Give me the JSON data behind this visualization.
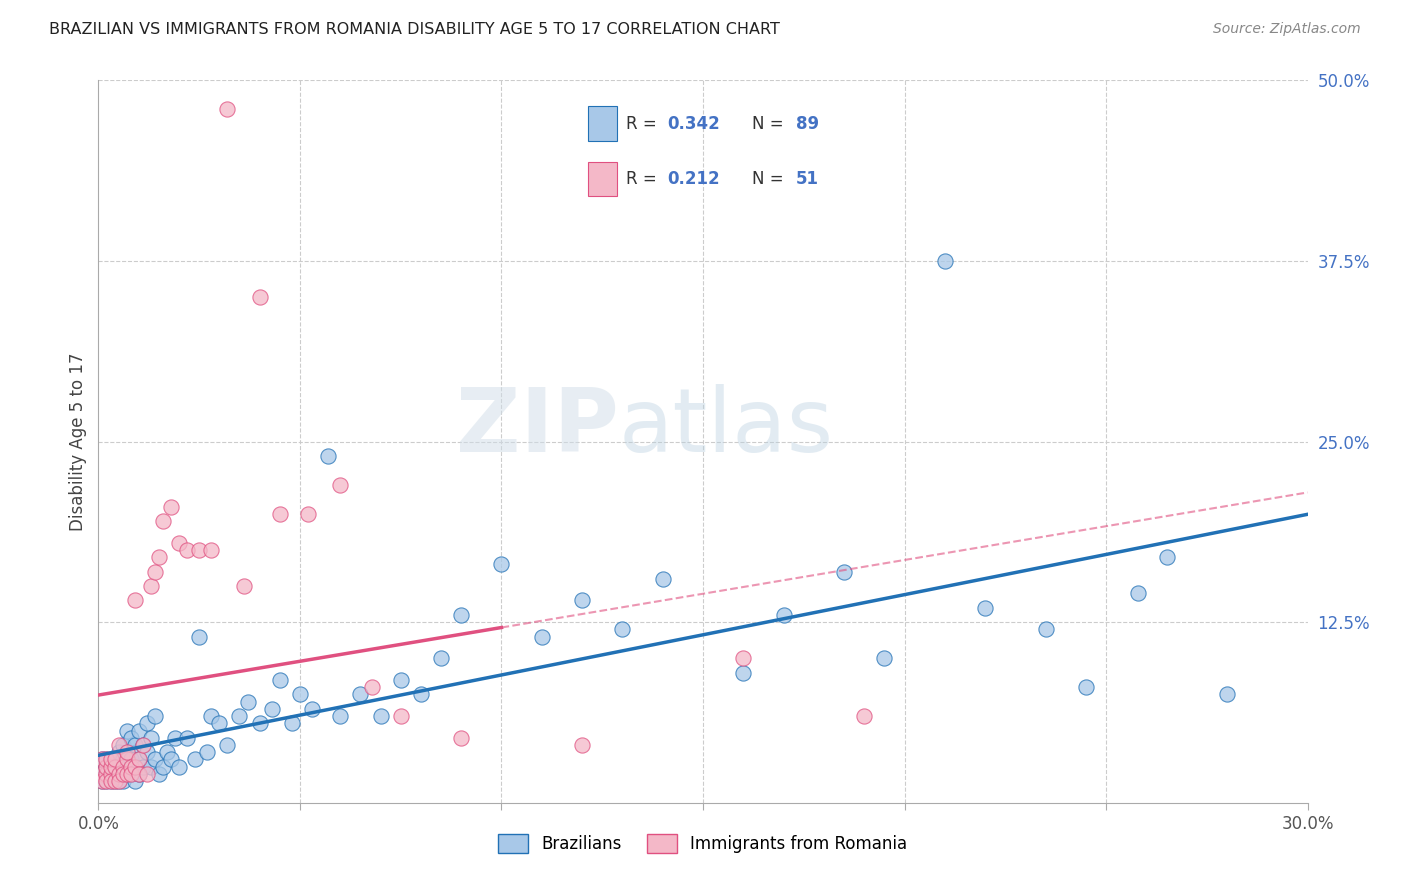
{
  "title": "BRAZILIAN VS IMMIGRANTS FROM ROMANIA DISABILITY AGE 5 TO 17 CORRELATION CHART",
  "source": "Source: ZipAtlas.com",
  "ylabel": "Disability Age 5 to 17",
  "xlabel": "",
  "xlim": [
    0.0,
    0.3
  ],
  "ylim": [
    0.0,
    0.5
  ],
  "xticks": [
    0.0,
    0.05,
    0.1,
    0.15,
    0.2,
    0.25,
    0.3
  ],
  "xticklabels": [
    "0.0%",
    "",
    "",
    "",
    "",
    "",
    "30.0%"
  ],
  "yticks_right": [
    0.0,
    0.125,
    0.25,
    0.375,
    0.5
  ],
  "yticklabels_right": [
    "",
    "12.5%",
    "25.0%",
    "37.5%",
    "50.0%"
  ],
  "blue_color": "#a8c8e8",
  "pink_color": "#f4b8c8",
  "blue_line_color": "#2171b5",
  "pink_line_color": "#e05080",
  "R_blue": 0.342,
  "N_blue": 89,
  "R_pink": 0.212,
  "N_pink": 51,
  "legend_label_blue": "Brazilians",
  "legend_label_pink": "Immigrants from Romania",
  "watermark_zip": "ZIP",
  "watermark_atlas": "atlas",
  "blue_scatter_x": [
    0.001,
    0.001,
    0.001,
    0.002,
    0.002,
    0.002,
    0.002,
    0.003,
    0.003,
    0.003,
    0.003,
    0.004,
    0.004,
    0.004,
    0.004,
    0.005,
    0.005,
    0.005,
    0.005,
    0.006,
    0.006,
    0.006,
    0.006,
    0.007,
    0.007,
    0.007,
    0.007,
    0.008,
    0.008,
    0.008,
    0.009,
    0.009,
    0.009,
    0.01,
    0.01,
    0.01,
    0.011,
    0.011,
    0.012,
    0.012,
    0.013,
    0.013,
    0.014,
    0.014,
    0.015,
    0.016,
    0.017,
    0.018,
    0.019,
    0.02,
    0.022,
    0.024,
    0.025,
    0.027,
    0.028,
    0.03,
    0.032,
    0.035,
    0.037,
    0.04,
    0.043,
    0.045,
    0.048,
    0.05,
    0.053,
    0.057,
    0.06,
    0.065,
    0.07,
    0.075,
    0.08,
    0.085,
    0.09,
    0.1,
    0.11,
    0.12,
    0.13,
    0.14,
    0.16,
    0.17,
    0.185,
    0.195,
    0.21,
    0.22,
    0.235,
    0.245,
    0.258,
    0.265,
    0.28
  ],
  "blue_scatter_y": [
    0.03,
    0.02,
    0.015,
    0.025,
    0.03,
    0.015,
    0.02,
    0.025,
    0.03,
    0.015,
    0.02,
    0.025,
    0.03,
    0.02,
    0.015,
    0.025,
    0.035,
    0.02,
    0.015,
    0.025,
    0.03,
    0.04,
    0.015,
    0.025,
    0.035,
    0.05,
    0.02,
    0.03,
    0.045,
    0.02,
    0.025,
    0.04,
    0.015,
    0.03,
    0.05,
    0.02,
    0.04,
    0.025,
    0.035,
    0.055,
    0.025,
    0.045,
    0.03,
    0.06,
    0.02,
    0.025,
    0.035,
    0.03,
    0.045,
    0.025,
    0.045,
    0.03,
    0.115,
    0.035,
    0.06,
    0.055,
    0.04,
    0.06,
    0.07,
    0.055,
    0.065,
    0.085,
    0.055,
    0.075,
    0.065,
    0.24,
    0.06,
    0.075,
    0.06,
    0.085,
    0.075,
    0.1,
    0.13,
    0.165,
    0.115,
    0.14,
    0.12,
    0.155,
    0.09,
    0.13,
    0.16,
    0.1,
    0.375,
    0.135,
    0.12,
    0.08,
    0.145,
    0.17,
    0.075
  ],
  "pink_scatter_x": [
    0.001,
    0.001,
    0.001,
    0.002,
    0.002,
    0.002,
    0.002,
    0.003,
    0.003,
    0.003,
    0.003,
    0.004,
    0.004,
    0.004,
    0.005,
    0.005,
    0.005,
    0.006,
    0.006,
    0.007,
    0.007,
    0.007,
    0.008,
    0.008,
    0.009,
    0.009,
    0.01,
    0.01,
    0.011,
    0.012,
    0.013,
    0.014,
    0.015,
    0.016,
    0.018,
    0.02,
    0.022,
    0.025,
    0.028,
    0.032,
    0.036,
    0.04,
    0.045,
    0.052,
    0.06,
    0.068,
    0.075,
    0.09,
    0.12,
    0.16,
    0.19
  ],
  "pink_scatter_y": [
    0.02,
    0.015,
    0.03,
    0.02,
    0.025,
    0.015,
    0.03,
    0.02,
    0.025,
    0.015,
    0.03,
    0.025,
    0.015,
    0.03,
    0.02,
    0.04,
    0.015,
    0.025,
    0.02,
    0.03,
    0.02,
    0.035,
    0.025,
    0.02,
    0.14,
    0.025,
    0.03,
    0.02,
    0.04,
    0.02,
    0.15,
    0.16,
    0.17,
    0.195,
    0.205,
    0.18,
    0.175,
    0.175,
    0.175,
    0.48,
    0.15,
    0.35,
    0.2,
    0.2,
    0.22,
    0.08,
    0.06,
    0.045,
    0.04,
    0.1,
    0.06
  ]
}
